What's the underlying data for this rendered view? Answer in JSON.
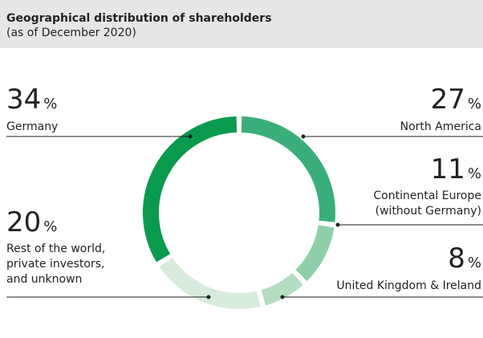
{
  "chart_data": {
    "type": "donut",
    "title": "Geographical distribution of shareholders",
    "subtitle": "(as of December 2020)",
    "unit": "%",
    "categories": [
      "North America",
      "Continental Europe\n(without Germany)",
      "United Kingdom & Ireland",
      "Rest of the world,\nprivate investors,\nand unknown",
      "Germany"
    ],
    "values": [
      27,
      11,
      8,
      20,
      34
    ],
    "colors": [
      "#3aae7a",
      "#8fcfa8",
      "#b3dcc2",
      "#d8ecdd",
      "#0a9a4e"
    ]
  }
}
